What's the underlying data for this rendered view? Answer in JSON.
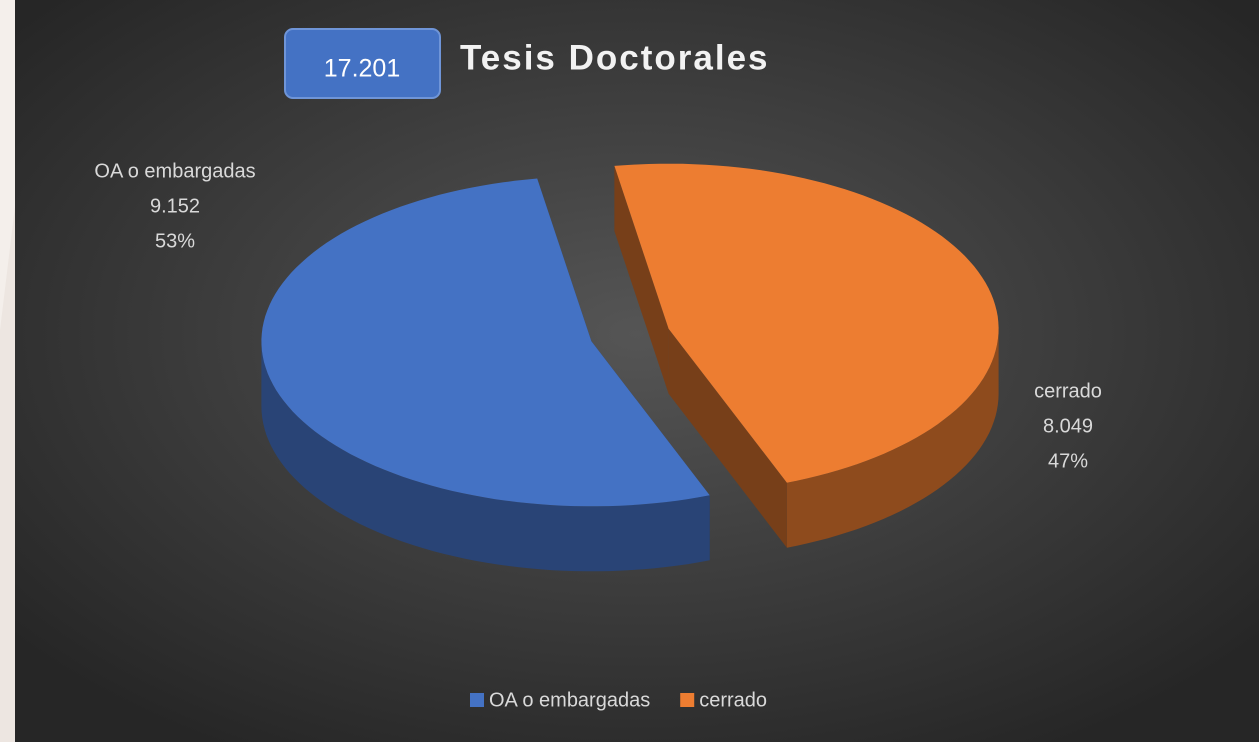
{
  "chart_data": {
    "type": "pie",
    "title": "Tesis Doctorales",
    "total": 17201,
    "total_label": "17.201",
    "categories": [
      "OA o embargadas",
      "cerrado"
    ],
    "values": [
      9152,
      8049
    ],
    "value_labels": [
      "9.152",
      "8.049"
    ],
    "percentages": [
      53,
      47
    ],
    "percentage_labels": [
      "53%",
      "47%"
    ],
    "colors": [
      "#4472c4",
      "#ed7d31"
    ],
    "legend": "bottom"
  }
}
